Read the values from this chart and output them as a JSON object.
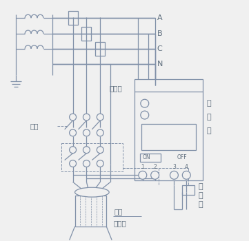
{
  "bg_color": "#f0f0f0",
  "line_color": "#8090a8",
  "text_color": "#5a6a7a",
  "fig_width": 3.61,
  "fig_height": 3.5,
  "phase_labels": [
    "A",
    "B",
    "C",
    "N"
  ],
  "cb_label": [
    "控",
    "制",
    "盒"
  ],
  "contact_label": [
    "接",
    "触",
    "器"
  ],
  "fuse_label": "燕断器",
  "knife_label": "刀闸",
  "head_label1": "控头",
  "head_label2": "至用户"
}
